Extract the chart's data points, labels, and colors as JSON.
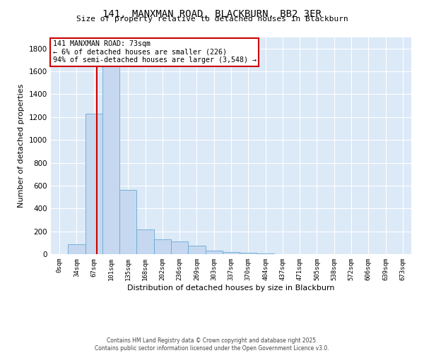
{
  "title": "141, MANXMAN ROAD, BLACKBURN, BB2 3ER",
  "subtitle": "Size of property relative to detached houses in Blackburn",
  "xlabel": "Distribution of detached houses by size in Blackburn",
  "ylabel": "Number of detached properties",
  "bar_labels": [
    "0sqm",
    "34sqm",
    "67sqm",
    "101sqm",
    "135sqm",
    "168sqm",
    "202sqm",
    "236sqm",
    "269sqm",
    "303sqm",
    "337sqm",
    "370sqm",
    "404sqm",
    "437sqm",
    "471sqm",
    "505sqm",
    "538sqm",
    "572sqm",
    "606sqm",
    "639sqm",
    "673sqm"
  ],
  "bar_values": [
    0,
    85,
    1230,
    1680,
    560,
    215,
    130,
    110,
    75,
    30,
    20,
    10,
    5,
    2,
    1,
    0,
    0,
    0,
    0,
    0,
    0
  ],
  "bar_color": "#c5d8f0",
  "bar_edge_color": "#6aaad4",
  "property_line_color": "#cc0000",
  "property_line_xindex": 2.176,
  "ylim": [
    0,
    1900
  ],
  "yticks": [
    0,
    200,
    400,
    600,
    800,
    1000,
    1200,
    1400,
    1600,
    1800
  ],
  "annotation_title": "141 MANXMAN ROAD: 73sqm",
  "annotation_line1": "← 6% of detached houses are smaller (226)",
  "annotation_line2": "94% of semi-detached houses are larger (3,548) →",
  "annotation_box_color": "#cc0000",
  "fig_background": "#ffffff",
  "plot_background": "#dce9f7",
  "grid_color": "#ffffff",
  "footer_line1": "Contains HM Land Registry data © Crown copyright and database right 2025.",
  "footer_line2": "Contains public sector information licensed under the Open Government Licence v3.0."
}
